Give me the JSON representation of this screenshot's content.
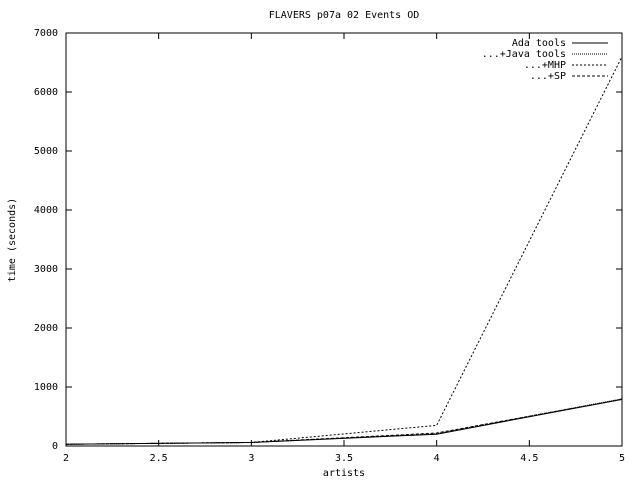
{
  "chart_data": {
    "type": "line",
    "title": "FLAVERS p07a 02 Events OD",
    "x_label": "artists",
    "y_label": "time (seconds)",
    "x": [
      2,
      3,
      4,
      5
    ],
    "series": [
      {
        "name": "Ada tools",
        "color": "#000000",
        "dash": "none",
        "values": [
          30,
          60,
          200,
          790
        ]
      },
      {
        "name": "...+Java tools",
        "color": "#000000",
        "dash": "1,1",
        "values": [
          30,
          60,
          210,
          800
        ]
      },
      {
        "name": "...+MHP",
        "color": "#000000",
        "dash": "2,2",
        "values": [
          30,
          60,
          350,
          6600
        ]
      },
      {
        "name": "...+SP",
        "color": "#000000",
        "dash": "3,2",
        "values": [
          30,
          60,
          220,
          790
        ]
      }
    ],
    "xlim": [
      2,
      5
    ],
    "xticks": [
      2,
      2.5,
      3,
      3.5,
      4,
      4.5,
      5
    ],
    "ylim": [
      0,
      7000
    ],
    "yticks": [
      0,
      1000,
      2000,
      3000,
      4000,
      5000,
      6000,
      7000
    ],
    "legend": "top-right"
  }
}
